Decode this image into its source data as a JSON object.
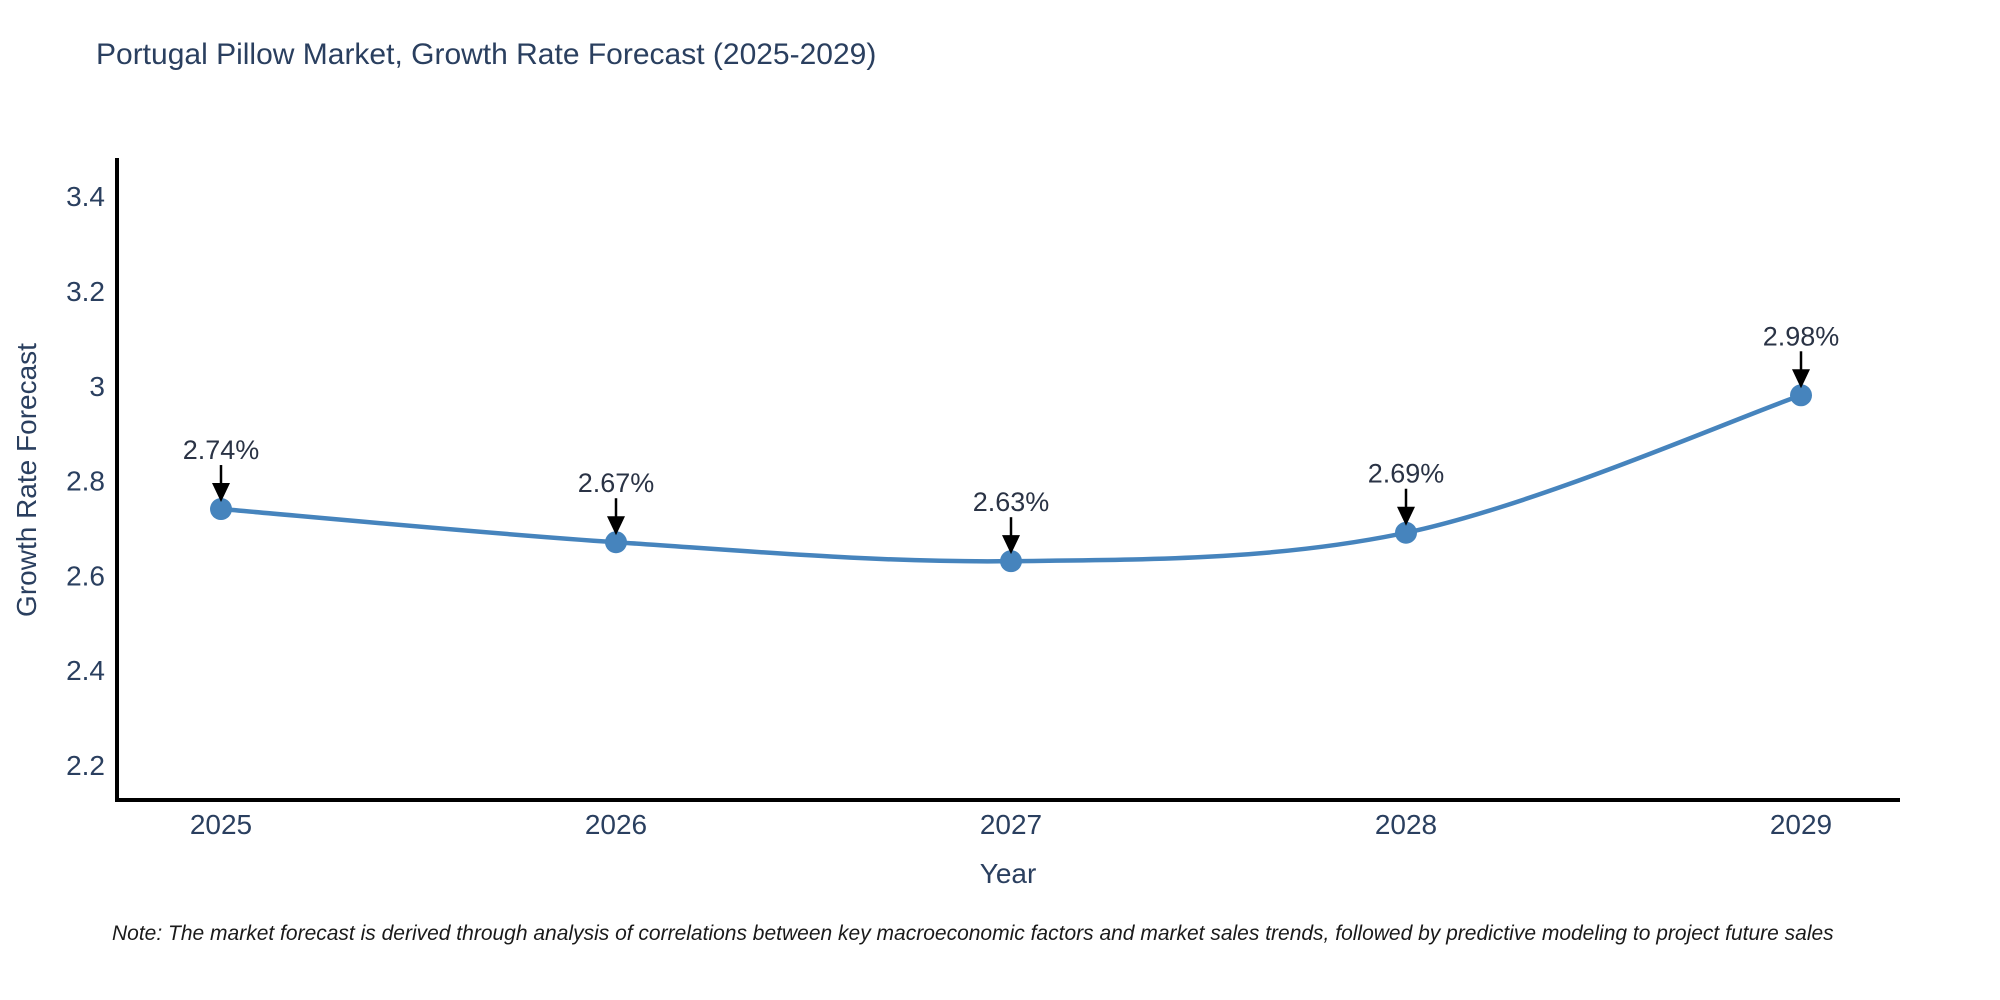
{
  "page": {
    "title": "Portugal Pillow Market, Growth Rate Forecast (2025-2029)",
    "note": "Note: The market forecast is derived through analysis of correlations between key macroeconomic factors and market sales trends, followed by predictive modeling to project future sales"
  },
  "chart_data": {
    "type": "line",
    "title": "Portugal Pillow Market, Growth Rate Forecast (2025-2029)",
    "xlabel": "Year",
    "ylabel": "Growth Rate Forecast",
    "categories": [
      "2025",
      "2026",
      "2027",
      "2028",
      "2029"
    ],
    "series": [
      {
        "name": "Growth Rate Forecast",
        "values": [
          2.74,
          2.67,
          2.63,
          2.69,
          2.98
        ],
        "point_labels": [
          "2.74%",
          "2.67%",
          "2.63%",
          "2.69%",
          "2.98%"
        ]
      }
    ],
    "y_ticks": [
      3.4,
      3.2,
      3.0,
      2.8,
      2.6,
      2.4,
      2.2
    ],
    "y_tick_labels": [
      "3.4",
      "3.2",
      "3",
      "2.8",
      "2.6",
      "2.4",
      "2.2"
    ],
    "x_tick_labels": [
      "2025",
      "2026",
      "2027",
      "2028",
      "2029"
    ],
    "ylim": [
      2.126,
      3.481
    ],
    "grid": false,
    "legend_position": "none",
    "annotation_arrows": true,
    "colors": {
      "line": "#4684bd",
      "marker": "#4684bd",
      "axis": "#000000",
      "tick_text": "#2a3f5f",
      "annotation_text": "#2a3345",
      "arrow": "#000000",
      "background": "#ffffff"
    }
  }
}
